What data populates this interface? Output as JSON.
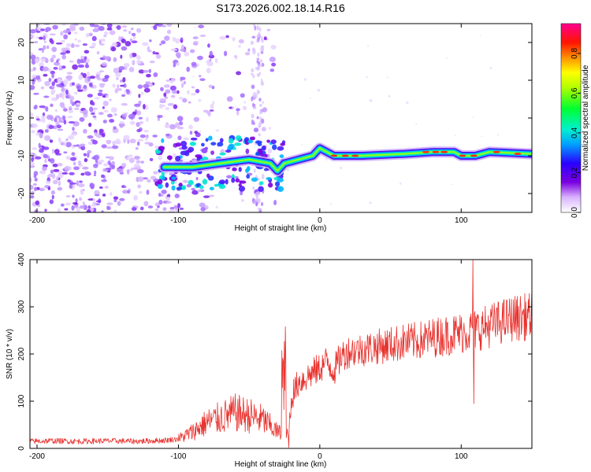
{
  "title": "S173.2026.002.18.14.R16",
  "chart_data": [
    {
      "type": "heatmap",
      "xlabel": "Height of straight line (km)",
      "ylabel": "Frequency (Hz)",
      "xlim": [
        -205,
        150
      ],
      "ylim": [
        -25,
        25
      ],
      "xticks": [
        -200,
        -100,
        0,
        100
      ],
      "yticks": [
        20,
        10,
        0,
        -10,
        -20
      ],
      "colorbar": {
        "label": "Normalized spectral amplitude",
        "range": [
          0,
          0.95
        ],
        "ticks": [
          0.0,
          0.2,
          0.4,
          0.6,
          0.8
        ]
      },
      "ridge": [
        {
          "x": -110,
          "y": -13
        },
        {
          "x": -90,
          "y": -13
        },
        {
          "x": -70,
          "y": -12
        },
        {
          "x": -50,
          "y": -11
        },
        {
          "x": -35,
          "y": -12
        },
        {
          "x": -30,
          "y": -14
        },
        {
          "x": -25,
          "y": -12
        },
        {
          "x": -15,
          "y": -11
        },
        {
          "x": -5,
          "y": -10
        },
        {
          "x": 0,
          "y": -8
        },
        {
          "x": 10,
          "y": -10
        },
        {
          "x": 30,
          "y": -10
        },
        {
          "x": 60,
          "y": -9.5
        },
        {
          "x": 80,
          "y": -9
        },
        {
          "x": 95,
          "y": -9
        },
        {
          "x": 100,
          "y": -10
        },
        {
          "x": 110,
          "y": -10
        },
        {
          "x": 120,
          "y": -9
        },
        {
          "x": 150,
          "y": -9.5
        }
      ]
    },
    {
      "type": "line",
      "xlabel": "Height of straight line (km)",
      "ylabel": "SNR (10 * v/v)",
      "xlim": [
        -205,
        150
      ],
      "ylim": [
        0,
        400
      ],
      "xticks": [
        -200,
        -100,
        0,
        100
      ],
      "yticks": [
        0,
        100,
        200,
        300,
        400
      ],
      "color": "#e8322e",
      "series": [
        {
          "x": [
            -205,
            -190,
            -170,
            -150,
            -130,
            -110,
            -100,
            -90,
            -80,
            -70,
            -60,
            -50,
            -40,
            -30,
            -22,
            -20,
            -15,
            -10,
            -5,
            0,
            5,
            10,
            15,
            20,
            30,
            40,
            50,
            60,
            70,
            80,
            90,
            100,
            108,
            115,
            125,
            135,
            150
          ],
          "y": [
            15,
            16,
            15,
            16,
            15,
            17,
            20,
            35,
            55,
            65,
            75,
            70,
            60,
            35,
            25,
            110,
            140,
            150,
            160,
            170,
            185,
            165,
            195,
            205,
            210,
            215,
            220,
            225,
            228,
            235,
            240,
            245,
            250,
            255,
            265,
            275,
            280
          ]
        }
      ]
    }
  ]
}
